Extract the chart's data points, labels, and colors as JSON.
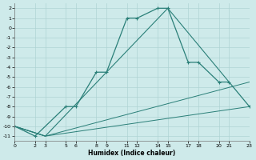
{
  "xlabel": "Humidex (Indice chaleur)",
  "bg_color": "#ceeaea",
  "grid_color": "#afd4d4",
  "line_color": "#2a7f78",
  "xlim": [
    0,
    23
  ],
  "ylim": [
    -11.5,
    2.5
  ],
  "yticks": [
    2,
    1,
    0,
    -1,
    -2,
    -3,
    -4,
    -5,
    -6,
    -7,
    -8,
    -9,
    -10,
    -11
  ],
  "xticks": [
    0,
    2,
    3,
    5,
    6,
    8,
    9,
    11,
    12,
    14,
    15,
    17,
    18,
    20,
    21,
    23
  ],
  "xtick_labels": [
    "0",
    "2",
    "3",
    "5",
    "6",
    "8",
    "9",
    "11",
    "12",
    "14",
    "15",
    "17",
    "18",
    "20",
    "21",
    "23"
  ],
  "line1": {
    "x": [
      0,
      2,
      5,
      6,
      8,
      9,
      11,
      12,
      14,
      15,
      17,
      18,
      20,
      21,
      23
    ],
    "y": [
      -10.0,
      -11.0,
      -8.0,
      -8.0,
      -4.5,
      -4.5,
      1.0,
      1.0,
      2.0,
      2.0,
      -3.5,
      -3.5,
      -5.5,
      -5.5,
      -8.0
    ],
    "markers": [
      false,
      false,
      true,
      false,
      true,
      false,
      true,
      false,
      true,
      false,
      true,
      false,
      true,
      false,
      true
    ]
  },
  "line2": {
    "x": [
      0,
      3,
      9,
      15,
      21
    ],
    "y": [
      -10.0,
      -11.0,
      -4.5,
      2.0,
      -5.5
    ]
  },
  "line3": {
    "x": [
      0,
      3,
      23
    ],
    "y": [
      -10.0,
      -11.0,
      -8.0
    ]
  },
  "line4": {
    "x": [
      0,
      3,
      23
    ],
    "y": [
      -10.0,
      -11.0,
      -5.5
    ]
  }
}
